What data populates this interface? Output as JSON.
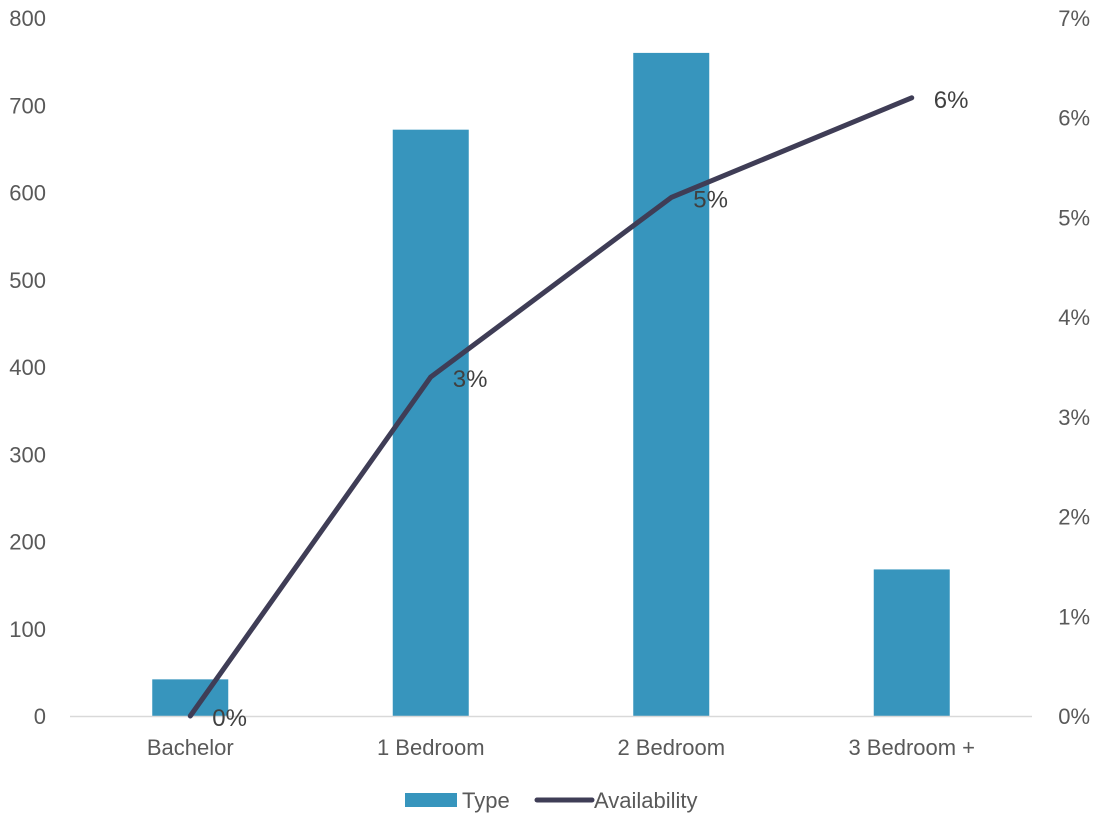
{
  "chart_data": {
    "type": "bar",
    "categories": [
      "Bachelor",
      "1 Bedroom",
      "2 Bedroom",
      "3 Bedroom +"
    ],
    "series": [
      {
        "name": "Type",
        "type": "bar",
        "axis": "left",
        "values": [
          42,
          672,
          760,
          168
        ],
        "color": "#3795BD"
      },
      {
        "name": "Availability",
        "type": "line",
        "axis": "right",
        "values": [
          0.0,
          3.4,
          5.2,
          6.2
        ],
        "data_labels": [
          "0%",
          "3%",
          "5%",
          "6%"
        ],
        "color": "#3F3D56"
      }
    ],
    "y_left": {
      "ylim": [
        0,
        800
      ],
      "ticks": [
        "0",
        "100",
        "200",
        "300",
        "400",
        "500",
        "600",
        "700",
        "800"
      ]
    },
    "y_right": {
      "ylim": [
        0,
        7
      ],
      "ticks": [
        "0%",
        "1%",
        "2%",
        "3%",
        "4%",
        "5%",
        "6%",
        "7%"
      ]
    },
    "legend": "bottom-center",
    "grid": false,
    "title": "",
    "xlabel": "",
    "ylabel": ""
  }
}
